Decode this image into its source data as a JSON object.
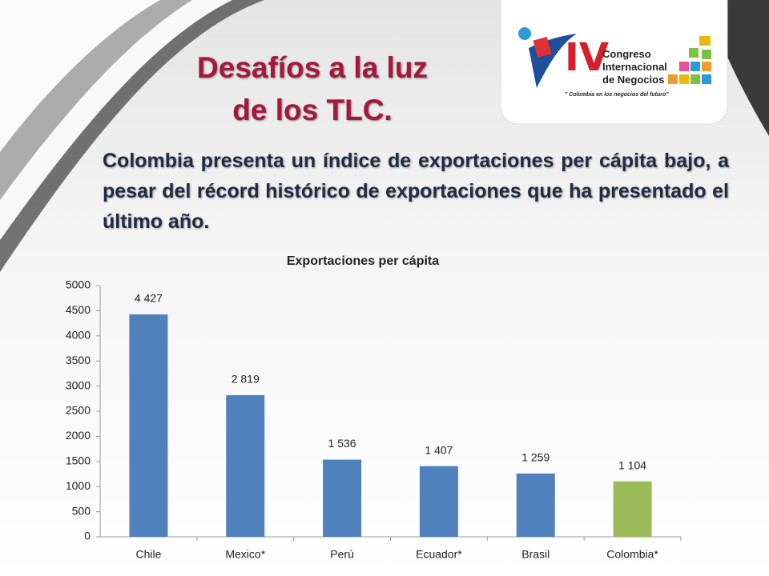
{
  "slide": {
    "title_line1": "Desafíos a la luz",
    "title_line2": "de los TLC.",
    "body": "Colombia presenta un índice de exportaciones per cápita bajo, a pesar del récord histórico de exportaciones que ha presentado el último año."
  },
  "logo": {
    "numeral": "IV",
    "name_line1": "Congreso",
    "name_line2": "Internacional",
    "name_line3": "de Negocios",
    "slogan": "\" Colombia en los negocios del futuro\""
  },
  "chart_data": {
    "type": "bar",
    "title": "Exportaciones per cápita",
    "categories": [
      "Chile",
      "Mexico*",
      "Perú",
      "Ecuador*",
      "Brasil",
      "Colombia*"
    ],
    "values": [
      4427,
      2819,
      1536,
      1407,
      1259,
      1104
    ],
    "value_labels": [
      "4 427",
      "2 819",
      "1 536",
      "1 407",
      "1 259",
      "1 104"
    ],
    "colors": [
      "#4f81bd",
      "#4f81bd",
      "#4f81bd",
      "#4f81bd",
      "#4f81bd",
      "#9bbb59"
    ],
    "ylim": [
      0,
      5000
    ],
    "yticks": [
      0,
      500,
      1000,
      1500,
      2000,
      2500,
      3000,
      3500,
      4000,
      4500,
      5000
    ],
    "grid": false
  }
}
